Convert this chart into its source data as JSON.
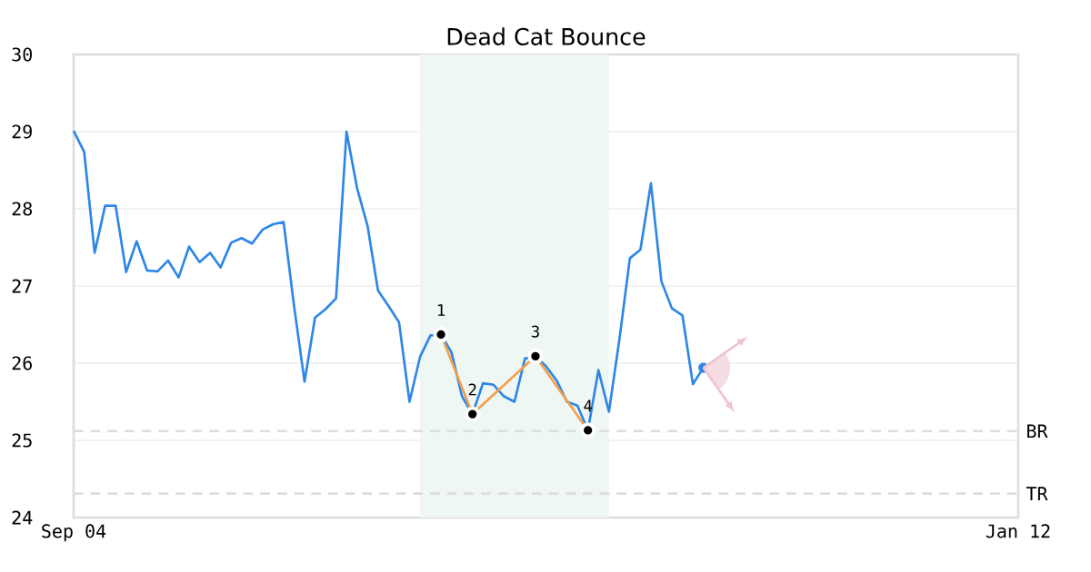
{
  "chart_data": {
    "type": "line",
    "title": "Dead Cat Bounce",
    "categories": [
      "Sep 04",
      null,
      null,
      null,
      null,
      null,
      null,
      null,
      null,
      null,
      null,
      null,
      null,
      null,
      null,
      null,
      null,
      null,
      null,
      null,
      null,
      null,
      null,
      null,
      null,
      null,
      null,
      null,
      null,
      null,
      null,
      null,
      null,
      null,
      null,
      null,
      null,
      null,
      null,
      null,
      null,
      null,
      null,
      null,
      null,
      null,
      null,
      null,
      null,
      null,
      null,
      null,
      null,
      null,
      null,
      null,
      null,
      null,
      null,
      null,
      null,
      null,
      null,
      null,
      null,
      null,
      null,
      null,
      null,
      null,
      null,
      null,
      null,
      null,
      null,
      null,
      null,
      null,
      null,
      null,
      null,
      null,
      null,
      null,
      null,
      null,
      null,
      null,
      null,
      null,
      "Jan 12"
    ],
    "series": [
      {
        "color": "#2e86e8",
        "marker": "none",
        "values": [
          29.01,
          28.74,
          27.43,
          28.04,
          28.04,
          27.18,
          27.58,
          27.2,
          27.19,
          27.33,
          27.11,
          27.51,
          27.31,
          27.43,
          27.24,
          27.56,
          27.62,
          27.55,
          27.73,
          27.8,
          27.83,
          26.74,
          25.76,
          26.59,
          26.7,
          26.84,
          29.0,
          28.27,
          27.78,
          26.94,
          26.74,
          26.53,
          25.5,
          26.08,
          26.36,
          26.37,
          26.14,
          25.57,
          25.34,
          25.74,
          25.72,
          25.57,
          25.5,
          26.06,
          26.09,
          25.96,
          25.78,
          25.5,
          25.45,
          25.13,
          25.91,
          25.37,
          26.31,
          27.36,
          27.47,
          28.33,
          27.06,
          26.71,
          26.62,
          25.73,
          25.94,
          null,
          null,
          null,
          null,
          null,
          null,
          null,
          null,
          null,
          null,
          null,
          null,
          null,
          null,
          null,
          null,
          null,
          null,
          null,
          null,
          null,
          null,
          null,
          null,
          null,
          null,
          null,
          null,
          null,
          null
        ]
      },
      {
        "type": "line",
        "color": "#f5a04a",
        "marker": "circle",
        "values": [
          null,
          null,
          null,
          null,
          null,
          null,
          null,
          null,
          null,
          null,
          null,
          null,
          null,
          null,
          null,
          null,
          null,
          null,
          null,
          null,
          null,
          null,
          null,
          null,
          null,
          null,
          null,
          null,
          null,
          null,
          null,
          null,
          null,
          null,
          null,
          26.37,
          null,
          null,
          25.34,
          null,
          null,
          null,
          null,
          null,
          26.09,
          null,
          null,
          null,
          null,
          25.13,
          null,
          null,
          null,
          null,
          null,
          null,
          null,
          null,
          null,
          null,
          null,
          null,
          null,
          null,
          null,
          null,
          null,
          null,
          null,
          null,
          null,
          null,
          null,
          null,
          null,
          null,
          null,
          null,
          null,
          null,
          null,
          null,
          null,
          null,
          null,
          null,
          null,
          null,
          null,
          null,
          null
        ]
      },
      {
        "type": "scatter",
        "color": "#2e86e8",
        "marker": "circle",
        "values": [
          null,
          null,
          null,
          null,
          null,
          null,
          null,
          null,
          null,
          null,
          null,
          null,
          null,
          null,
          null,
          null,
          null,
          null,
          null,
          null,
          null,
          null,
          null,
          null,
          null,
          null,
          null,
          null,
          null,
          null,
          null,
          null,
          null,
          null,
          null,
          null,
          null,
          null,
          null,
          null,
          null,
          null,
          null,
          null,
          null,
          null,
          null,
          null,
          null,
          null,
          null,
          null,
          null,
          null,
          null,
          null,
          null,
          null,
          null,
          null,
          25.94,
          null,
          null,
          null,
          null,
          null,
          null,
          null,
          null,
          null,
          null,
          null,
          null,
          null,
          null,
          null,
          null,
          null,
          null,
          null,
          null,
          null,
          null,
          null,
          null,
          null,
          null,
          null,
          null,
          null,
          null
        ]
      }
    ],
    "ylim": [
      24,
      30
    ],
    "yticks": [
      24,
      25,
      26,
      27,
      28,
      29,
      30
    ],
    "grid": "y",
    "ref_lines": [
      {
        "axis": "y",
        "value": 25.12,
        "label": "BR",
        "color": "#dddddd",
        "line_style": "dashed"
      },
      {
        "axis": "y",
        "value": 24.31,
        "label": "TR",
        "color": "#dddddd",
        "line_style": "dashed"
      }
    ],
    "annotations": [
      "1",
      "2",
      "3",
      "4"
    ]
  }
}
